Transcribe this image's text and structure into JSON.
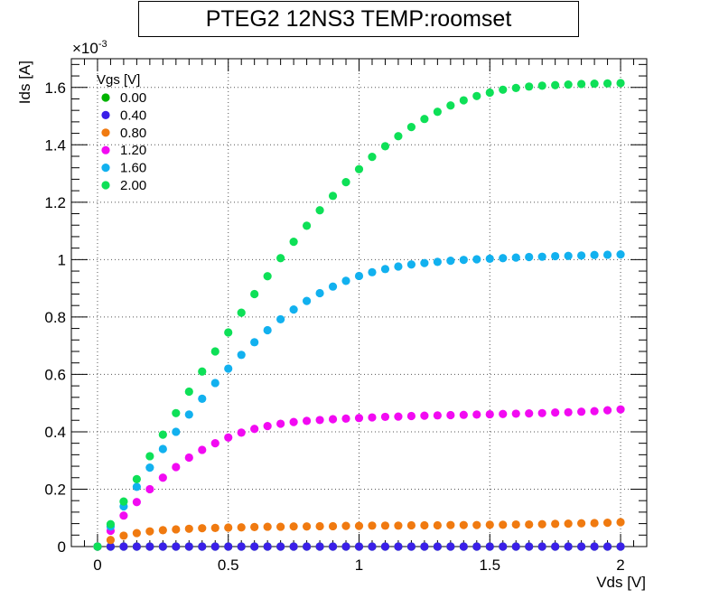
{
  "chart_data": {
    "type": "scatter",
    "title": "PTEG2 12NS3 TEMP:roomset",
    "xlabel": "Vds [V]",
    "ylabel": "Ids [A]",
    "y_multiplier_label": "×10",
    "y_multiplier_exp": "-3",
    "xlim": [
      -0.1,
      2.1
    ],
    "ylim": [
      0,
      1.7
    ],
    "x_ticks": [
      "0",
      "0.5",
      "1",
      "1.5",
      "2"
    ],
    "y_ticks": [
      "0",
      "0.2",
      "0.4",
      "0.6",
      "0.8",
      "1",
      "1.2",
      "1.4",
      "1.6"
    ],
    "grid": true,
    "legend_title": "Vgs [V]",
    "legend_position": "top-left",
    "x": [
      0,
      0.05,
      0.1,
      0.15,
      0.2,
      0.25,
      0.3,
      0.35,
      0.4,
      0.45,
      0.5,
      0.55,
      0.6,
      0.65,
      0.7,
      0.75,
      0.8,
      0.85,
      0.9,
      0.95,
      1.0,
      1.05,
      1.1,
      1.15,
      1.2,
      1.25,
      1.3,
      1.35,
      1.4,
      1.45,
      1.5,
      1.55,
      1.6,
      1.65,
      1.7,
      1.75,
      1.8,
      1.85,
      1.9,
      1.95,
      2.0
    ],
    "series": [
      {
        "name": "0.00",
        "color": "#00b300",
        "values": [
          0,
          0,
          0,
          0,
          0,
          0,
          0,
          0,
          0,
          0,
          0,
          0,
          0,
          0,
          0,
          0,
          0,
          0,
          0,
          0,
          0,
          0,
          0,
          0,
          0,
          0,
          0,
          0,
          0,
          0,
          0,
          0,
          0,
          0,
          0,
          0,
          0,
          0,
          0,
          0,
          0
        ]
      },
      {
        "name": "0.40",
        "color": "#3a1fe8",
        "values": [
          0,
          0,
          0,
          0,
          0,
          0,
          0,
          0,
          0,
          0,
          0,
          0,
          0,
          0,
          0,
          0,
          0,
          0,
          0,
          0,
          0,
          0,
          0,
          0,
          0,
          0,
          0,
          0,
          0,
          0,
          0,
          0,
          0,
          0,
          0,
          0,
          0,
          0,
          0,
          0,
          0
        ]
      },
      {
        "name": "0.80",
        "color": "#f07a10",
        "values": [
          0,
          0.023,
          0.038,
          0.047,
          0.053,
          0.057,
          0.06,
          0.062,
          0.064,
          0.065,
          0.066,
          0.067,
          0.068,
          0.069,
          0.069,
          0.07,
          0.07,
          0.071,
          0.071,
          0.072,
          0.072,
          0.073,
          0.073,
          0.073,
          0.074,
          0.074,
          0.074,
          0.075,
          0.075,
          0.075,
          0.076,
          0.076,
          0.077,
          0.077,
          0.078,
          0.079,
          0.08,
          0.081,
          0.082,
          0.083,
          0.085
        ]
      },
      {
        "name": "1.20",
        "color": "#f20af2",
        "values": [
          0,
          0.055,
          0.108,
          0.155,
          0.2,
          0.24,
          0.277,
          0.31,
          0.337,
          0.36,
          0.38,
          0.397,
          0.41,
          0.42,
          0.428,
          0.434,
          0.438,
          0.441,
          0.444,
          0.446,
          0.448,
          0.45,
          0.452,
          0.453,
          0.455,
          0.456,
          0.457,
          0.458,
          0.459,
          0.46,
          0.461,
          0.462,
          0.463,
          0.464,
          0.465,
          0.467,
          0.468,
          0.47,
          0.472,
          0.475,
          0.478
        ]
      },
      {
        "name": "1.60",
        "color": "#12b1ef",
        "values": [
          0,
          0.07,
          0.14,
          0.208,
          0.275,
          0.34,
          0.4,
          0.46,
          0.515,
          0.57,
          0.62,
          0.668,
          0.712,
          0.754,
          0.792,
          0.826,
          0.856,
          0.883,
          0.906,
          0.926,
          0.943,
          0.956,
          0.967,
          0.976,
          0.983,
          0.988,
          0.992,
          0.996,
          0.999,
          1.001,
          1.003,
          1.005,
          1.007,
          1.009,
          1.01,
          1.012,
          1.013,
          1.014,
          1.016,
          1.017,
          1.018
        ]
      },
      {
        "name": "2.00",
        "color": "#0ee057",
        "values": [
          0,
          0.078,
          0.157,
          0.235,
          0.315,
          0.39,
          0.465,
          0.54,
          0.61,
          0.68,
          0.746,
          0.815,
          0.88,
          0.942,
          1.005,
          1.062,
          1.118,
          1.172,
          1.222,
          1.27,
          1.315,
          1.358,
          1.395,
          1.43,
          1.462,
          1.49,
          1.515,
          1.537,
          1.555,
          1.57,
          1.582,
          1.592,
          1.598,
          1.603,
          1.606,
          1.608,
          1.61,
          1.612,
          1.613,
          1.614,
          1.615
        ]
      }
    ]
  }
}
